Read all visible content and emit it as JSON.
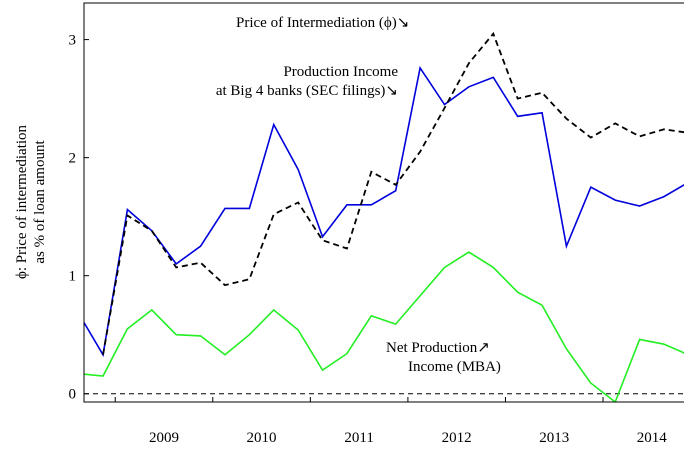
{
  "chart_data": {
    "type": "line",
    "y_label": [
      "ϕ: Price of intermediation",
      "as % of loan amount"
    ],
    "annotations": [
      "Price of Intermediation (ϕ)↘",
      "Production Income",
      "at Big 4 banks (SEC filings)↘",
      "Net Production↗",
      "Income (MBA)"
    ],
    "x": [
      2008.625,
      2008.875,
      2009.125,
      2009.375,
      2009.625,
      2009.875,
      2010.125,
      2010.375,
      2010.625,
      2010.875,
      2011.125,
      2011.375,
      2011.625,
      2011.875,
      2012.125,
      2012.375,
      2012.625,
      2012.875,
      2013.125,
      2013.375,
      2013.625,
      2013.875,
      2014.125,
      2014.375,
      2014.625,
      2014.875
    ],
    "series": [
      {
        "color": "#0000dd",
        "dashed": false,
        "values": [
          0.68,
          0.33,
          1.56,
          1.38,
          1.1,
          1.25,
          1.57,
          1.57,
          2.28,
          1.9,
          1.33,
          1.6,
          1.6,
          1.72,
          2.76,
          2.45,
          2.6,
          2.68,
          2.35,
          2.38,
          1.25,
          1.75,
          1.64,
          1.59,
          1.67,
          1.79
        ]
      },
      {
        "color": "#000000",
        "dashed": true,
        "values": [
          null,
          0.33,
          1.51,
          1.38,
          1.07,
          1.11,
          0.92,
          0.97,
          1.52,
          1.62,
          1.3,
          1.23,
          1.88,
          1.77,
          2.05,
          2.42,
          2.8,
          3.05,
          2.5,
          2.55,
          2.33,
          2.17,
          2.29,
          2.18,
          2.24,
          2.21
        ]
      },
      {
        "color": "#22ee22",
        "dashed": false,
        "values": [
          0.17,
          0.15,
          0.55,
          0.71,
          0.5,
          0.49,
          0.33,
          0.5,
          0.71,
          0.54,
          0.2,
          0.34,
          0.66,
          0.59,
          0.83,
          1.07,
          1.2,
          1.07,
          0.86,
          0.75,
          0.38,
          0.09,
          -0.07,
          0.46,
          0.42,
          0.33
        ]
      }
    ],
    "reference_line": 0,
    "xlim": [
      2008.68,
      2014.83
    ],
    "xticks": [
      2009,
      2010,
      2011,
      2012,
      2013,
      2014
    ],
    "ylim": [
      -0.07,
      3.31
    ],
    "yticks": [
      0,
      1,
      2,
      3
    ]
  }
}
